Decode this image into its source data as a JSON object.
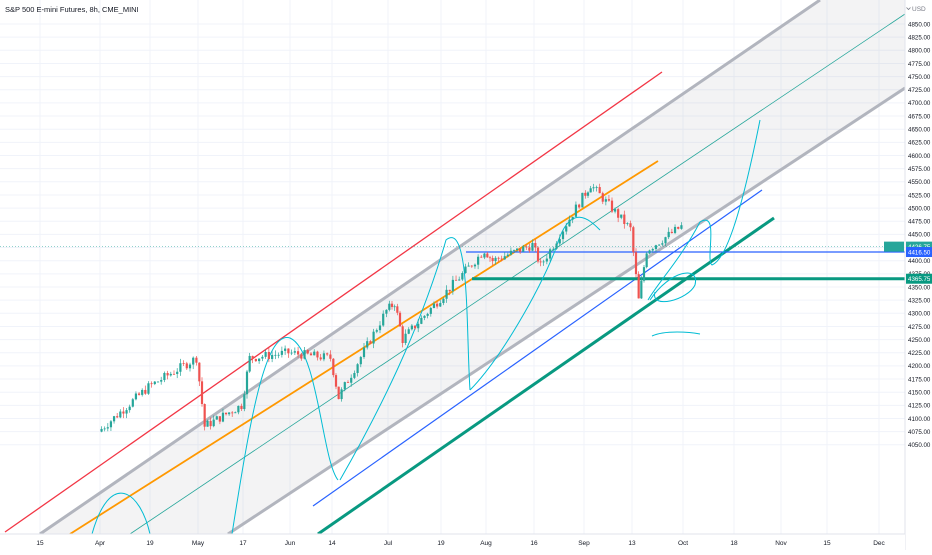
{
  "header": {
    "symbol_title": "S&P 500 E-mini Futures, 8h, CME_MINI",
    "currency": "USD"
  },
  "price_axis": {
    "labels": [
      4850,
      4825,
      4800,
      4775,
      4750,
      4725,
      4700,
      4675,
      4650,
      4625,
      4600,
      4575,
      4550,
      4525,
      4500,
      4475,
      4450,
      4425,
      4400,
      4375,
      4350,
      4325,
      4300,
      4275,
      4250,
      4225,
      4200,
      4175,
      4150,
      4125,
      4100,
      4075,
      4050
    ]
  },
  "price_tags": [
    {
      "label": "4426.75",
      "value": 4426.75,
      "color": "#26a69a"
    },
    {
      "label": "4416.50",
      "value": 4416.5,
      "color": "#2962ff"
    },
    {
      "label": "4365.75",
      "value": 4365.75,
      "color": "#089981"
    }
  ],
  "time_axis": {
    "labels": [
      "15",
      "Apr",
      "19",
      "May",
      "17",
      "Jun",
      "14",
      "Jul",
      "19",
      "Aug",
      "16",
      "Sep",
      "13",
      "Oct",
      "18",
      "Nov",
      "15",
      "Dec"
    ]
  },
  "chart_data": {
    "type": "candlestick",
    "title": "S&P 500 E-mini Futures, 8h, CME_MINI",
    "y_unit": "USD",
    "ylim": [
      4050,
      4870
    ],
    "x_ticks": [
      "15",
      "Apr",
      "19",
      "May",
      "17",
      "Jun",
      "14",
      "Jul",
      "19",
      "Aug",
      "16",
      "Sep",
      "13",
      "Oct",
      "18",
      "Nov",
      "15",
      "Dec"
    ],
    "last_price": 4426.75,
    "price_path": [
      [
        "Apr",
        4075
      ],
      [
        "19",
        4160
      ],
      [
        "May",
        4215
      ],
      [
        "May",
        4085
      ],
      [
        "17",
        4125
      ],
      [
        "17",
        4215
      ],
      [
        "Jun",
        4225
      ],
      [
        "14",
        4215
      ],
      [
        "14",
        4140
      ],
      [
        "Jul",
        4305
      ],
      [
        "19",
        4320
      ],
      [
        "19",
        4250
      ],
      [
        "Aug",
        4420
      ],
      [
        "Aug",
        4400
      ],
      [
        "16",
        4430
      ],
      [
        "16",
        4390
      ],
      [
        "Sep",
        4520
      ],
      [
        "Sep",
        4545
      ],
      [
        "13",
        4460
      ],
      [
        "13",
        4325
      ],
      [
        "13",
        4420
      ],
      [
        "Oct",
        4465
      ]
    ],
    "horizontal_levels": [
      4416.5,
      4365.75
    ],
    "grid": true
  }
}
